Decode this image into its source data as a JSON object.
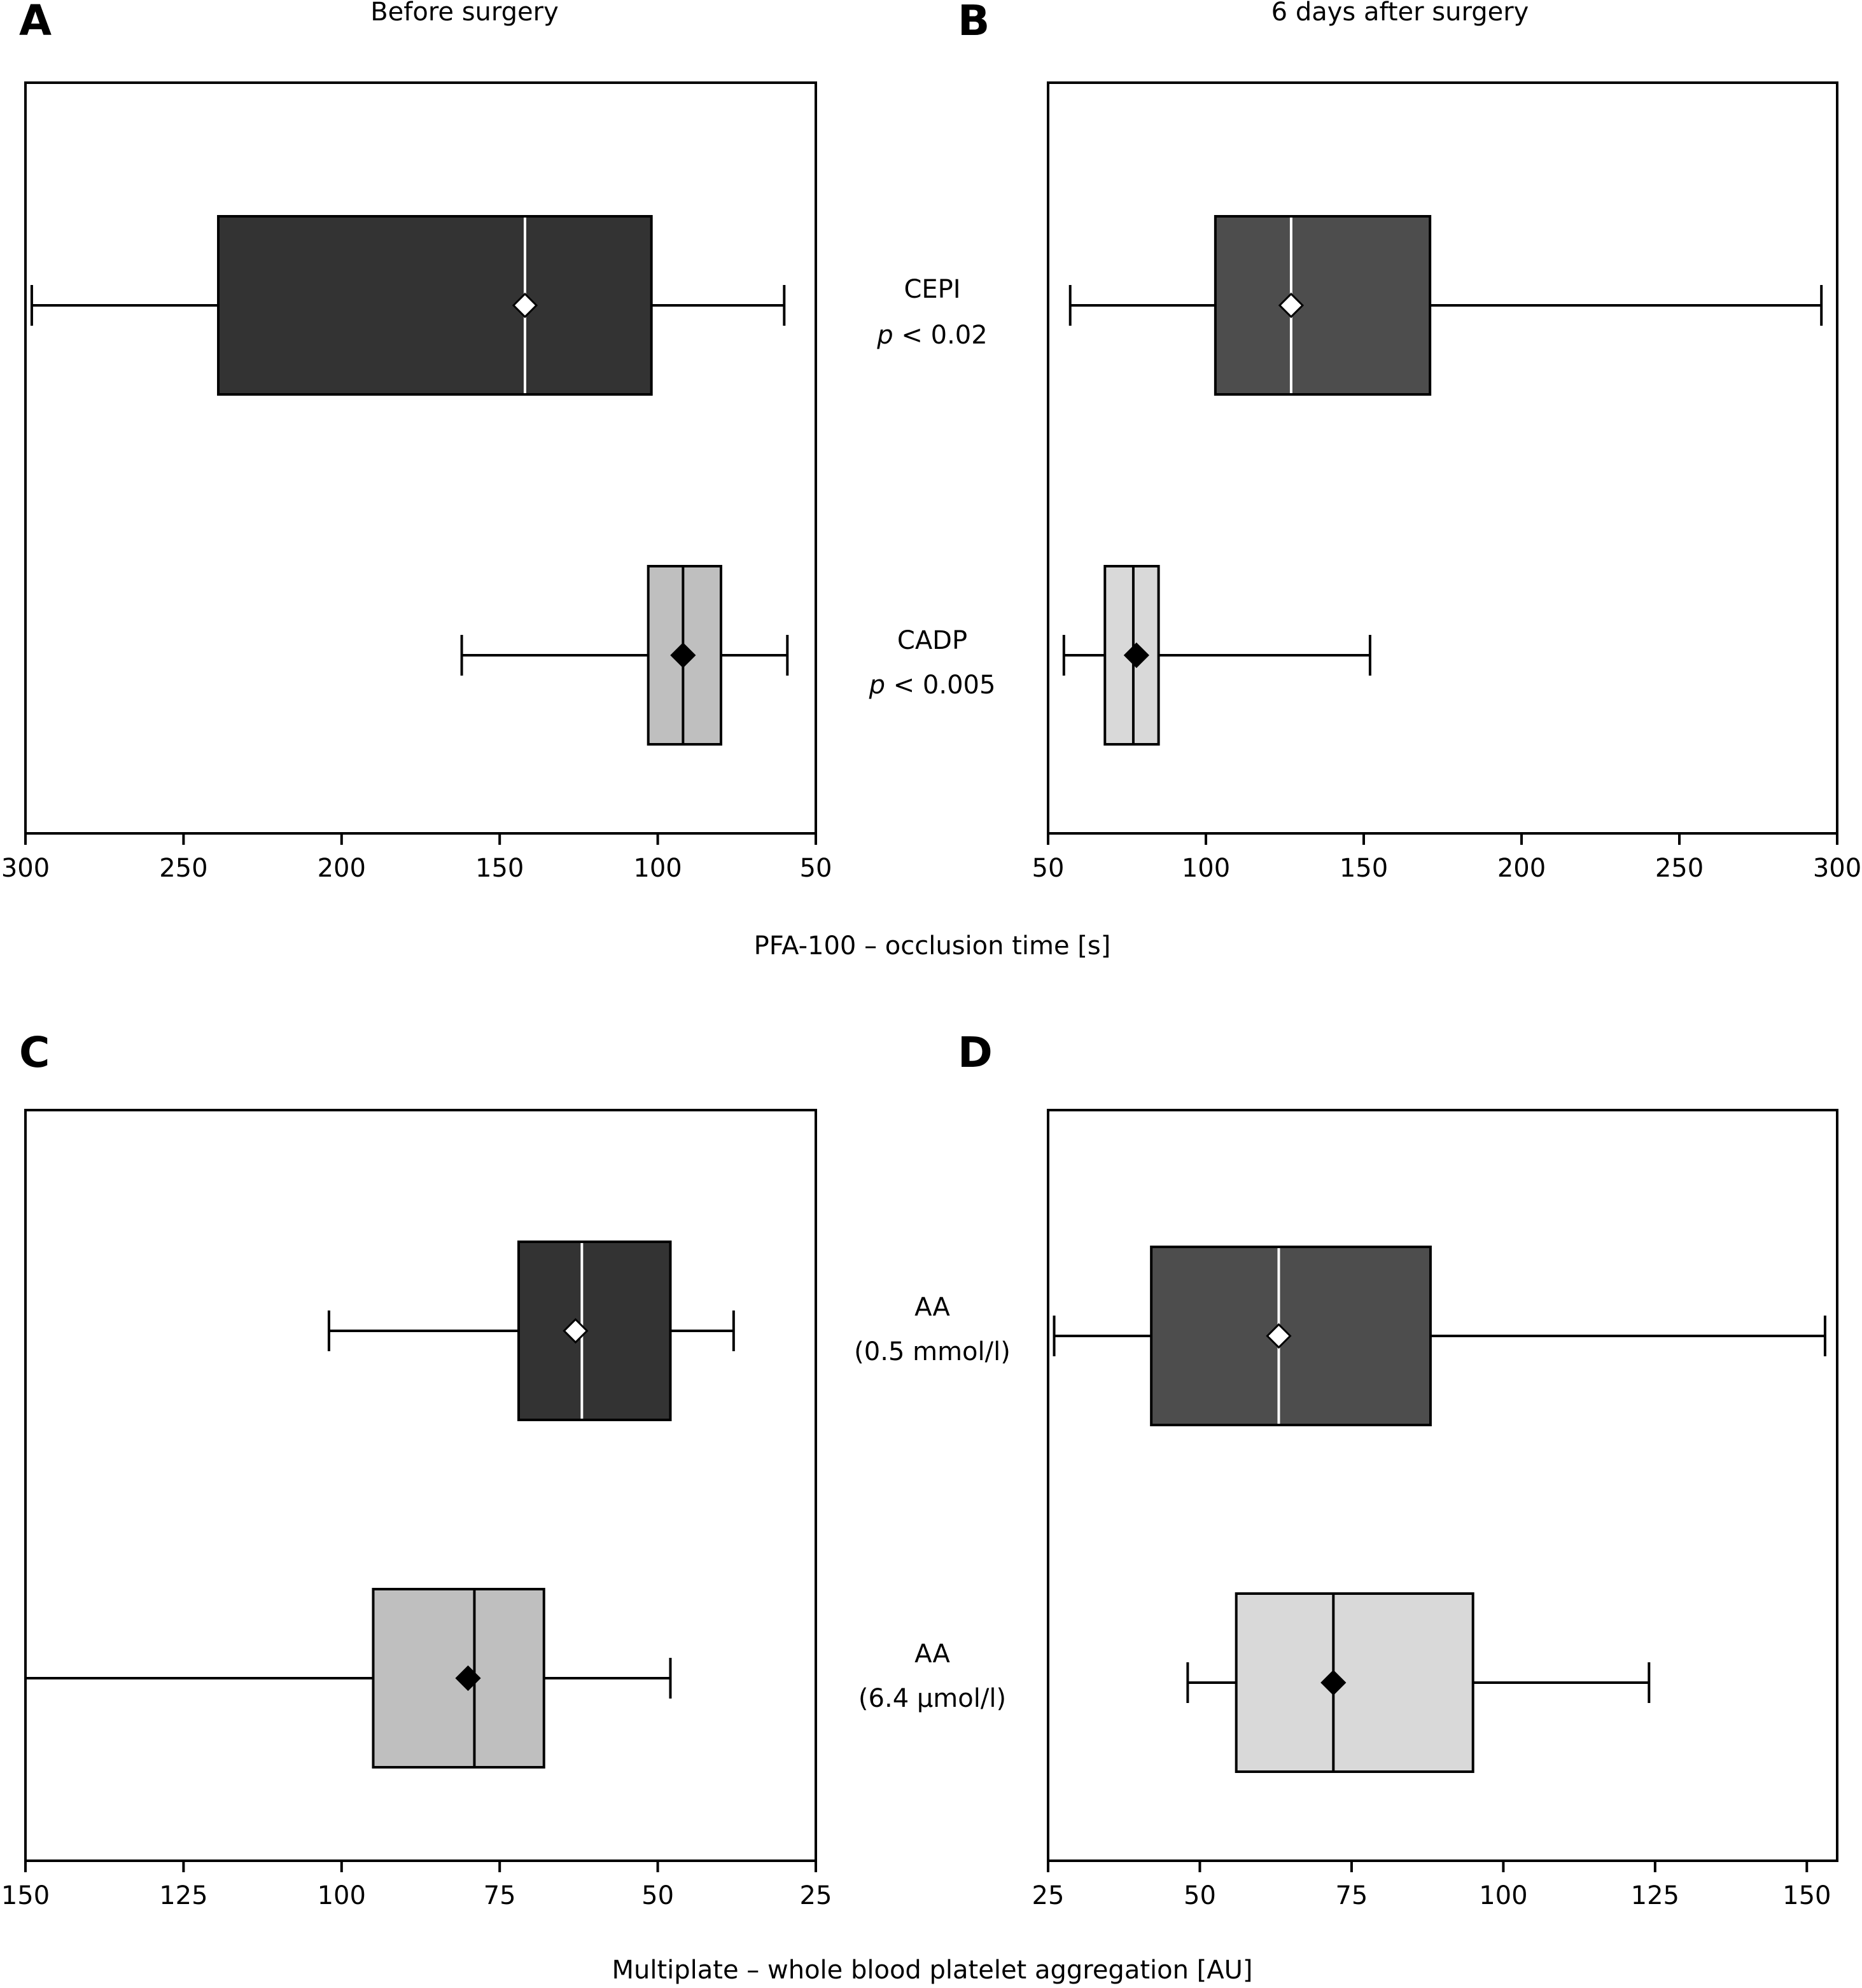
{
  "chart_data": [
    {
      "type": "boxplot",
      "panel_letter": "A",
      "column_title": "Before surgery",
      "orientation": "horizontal",
      "x_reversed": true,
      "xlim": [
        300,
        50
      ],
      "xticks": [
        300,
        250,
        200,
        150,
        100,
        50
      ],
      "xlabel": "PFA-100 – occlusion time [s]",
      "grid": false,
      "series": [
        {
          "category": "CEPI",
          "whisker_low": 60,
          "q1": 102,
          "median": 142,
          "q3": 239,
          "whisker_high": 298,
          "mean": 142,
          "fill": "#333333",
          "median_color": "#ffffff",
          "marker_fill": "#ffffff"
        },
        {
          "category": "CADP",
          "whisker_low": 59,
          "q1": 80,
          "median": 92,
          "q3": 103,
          "whisker_high": 162,
          "mean": 92,
          "fill": "#bfbfbf",
          "median_color": "#000000",
          "marker_fill": "#000000"
        }
      ]
    },
    {
      "type": "boxplot",
      "panel_letter": "B",
      "column_title": "6 days after surgery",
      "orientation": "horizontal",
      "x_reversed": false,
      "xlim": [
        50,
        300
      ],
      "xticks": [
        50,
        100,
        150,
        200,
        250,
        300
      ],
      "xlabel": "PFA-100 – occlusion time [s]",
      "grid": false,
      "series": [
        {
          "category": "CEPI",
          "whisker_low": 57,
          "q1": 103,
          "median": 127,
          "q3": 171,
          "whisker_high": 295,
          "mean": 127,
          "fill": "#4d4d4d",
          "median_color": "#ffffff",
          "marker_fill": "#ffffff"
        },
        {
          "category": "CADP",
          "whisker_low": 55,
          "q1": 68,
          "median": 77,
          "q3": 85,
          "whisker_high": 152,
          "mean": 78,
          "fill": "#d9d9d9",
          "median_color": "#000000",
          "marker_fill": "#000000"
        }
      ]
    },
    {
      "type": "boxplot",
      "panel_letter": "C",
      "orientation": "horizontal",
      "x_reversed": true,
      "xlim": [
        150,
        25
      ],
      "xticks": [
        150,
        125,
        100,
        75,
        50,
        25
      ],
      "xlabel": "Multiplate – whole blood platelet aggregation [AU]",
      "grid": false,
      "series": [
        {
          "category": "AA (0.5 mmol/l)",
          "whisker_low": 38,
          "q1": 48,
          "median": 62,
          "q3": 72,
          "whisker_high": 102,
          "mean": 63,
          "fill": "#333333",
          "median_color": "#ffffff",
          "marker_fill": "#ffffff"
        },
        {
          "category": "AA (6.4 µmol/l)",
          "whisker_low": 48,
          "q1": 68,
          "median": 79,
          "q3": 95,
          "whisker_high": 150,
          "mean": 80,
          "fill": "#bfbfbf",
          "median_color": "#000000",
          "marker_fill": "#000000"
        }
      ]
    },
    {
      "type": "boxplot",
      "panel_letter": "D",
      "orientation": "horizontal",
      "x_reversed": false,
      "xlim": [
        25,
        155
      ],
      "xticks": [
        25,
        50,
        75,
        100,
        125,
        150
      ],
      "xlabel": "Multiplate – whole blood platelet aggregation [AU]",
      "grid": false,
      "series": [
        {
          "category": "AA (0.5 mmol/l)",
          "whisker_low": 26,
          "q1": 42,
          "median": 63,
          "q3": 88,
          "whisker_high": 153,
          "mean": 63,
          "fill": "#4d4d4d",
          "median_color": "#ffffff",
          "marker_fill": "#ffffff"
        },
        {
          "category": "AA (6.4 µmol/l)",
          "whisker_low": 48,
          "q1": 56,
          "median": 72,
          "q3": 95,
          "whisker_high": 124,
          "mean": 72,
          "fill": "#d9d9d9",
          "median_color": "#000000",
          "marker_fill": "#000000"
        }
      ]
    }
  ],
  "center_labels": {
    "pfa_top": {
      "line1": "CEPI",
      "p_symbol": "p",
      "p_value": " < 0.02"
    },
    "pfa_bottom": {
      "line1": "CADP",
      "p_symbol": "p",
      "p_value": " < 0.005"
    },
    "mp_top": {
      "line1": "AA",
      "line2": "(0.5 mmol/l)"
    },
    "mp_bottom": {
      "line1": "AA",
      "line2": "(6.4 µmol/l)"
    }
  },
  "axis_titles": {
    "pfa": "PFA-100 – occlusion time [s]",
    "multiplate": "Multiplate – whole blood platelet aggregation [AU]"
  }
}
